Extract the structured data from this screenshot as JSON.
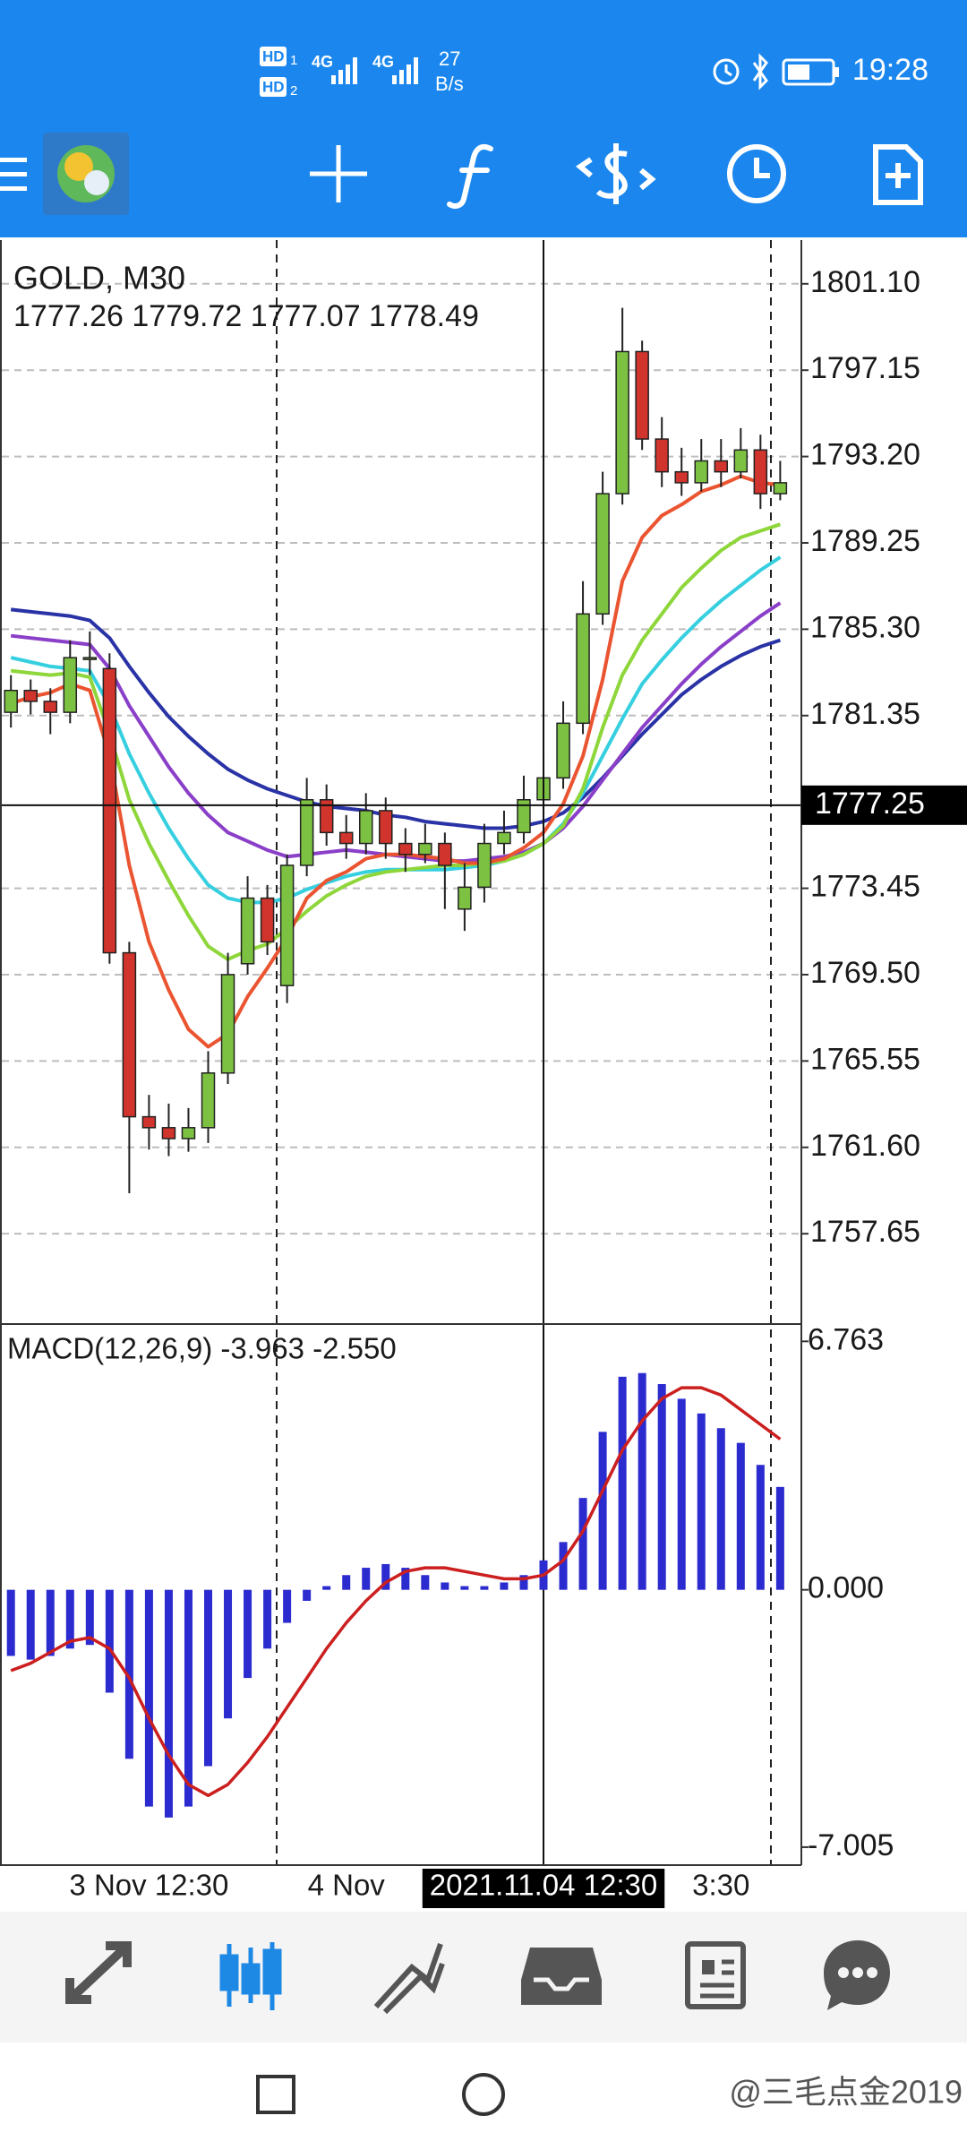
{
  "status_bar": {
    "sim": [
      "HD",
      "HD"
    ],
    "sim_index": [
      "1",
      "2"
    ],
    "network": [
      "4G",
      "4G"
    ],
    "speed": "27",
    "speed_unit": "B/s",
    "time": "19:28"
  },
  "watermark": "@三毛点金2019",
  "chart_data": [
    {
      "type": "candlestick",
      "title": "GOLD, M30",
      "subtitle": "1777.26 1779.72 1777.07 1778.49",
      "categories": [
        null,
        null,
        null,
        null,
        null,
        null,
        null,
        "3 Nov 12:30",
        null,
        null,
        null,
        null,
        null,
        null,
        null,
        null,
        null,
        "4 Nov",
        null,
        null,
        null,
        null,
        null,
        null,
        null,
        null,
        null,
        "2021.11.04 12:30",
        null,
        null,
        null,
        null,
        null,
        null,
        null,
        null,
        "3:30",
        null,
        null,
        null
      ],
      "open": [
        1781.5,
        1782.5,
        1782,
        1781.5,
        1784,
        1783.5,
        1770.5,
        1763,
        1762.5,
        1762,
        1762.5,
        1765,
        1770,
        1773,
        1769,
        1774.5,
        1777.5,
        1776,
        1775.5,
        1777,
        1775.5,
        1775,
        1775.5,
        1772.5,
        1773.5,
        1775.5,
        1776,
        1777.5,
        1778.5,
        1781,
        1786,
        1791.5,
        1798,
        1794,
        1792.5,
        1792,
        1793,
        1792.5,
        1793.5,
        1791.5
      ],
      "high": [
        1783.2,
        1783,
        1782.6,
        1784.8,
        1785.2,
        1784.2,
        1771,
        1764,
        1763.6,
        1763.4,
        1766,
        1770.5,
        1774,
        1773.6,
        1775,
        1778.5,
        1778.2,
        1776.8,
        1777.8,
        1777.6,
        1776.2,
        1776.4,
        1776,
        1774.6,
        1776.4,
        1777,
        1778.6,
        1779.6,
        1782,
        1787.5,
        1792.5,
        1800,
        1798.5,
        1795,
        1793.6,
        1794,
        1794,
        1794.5,
        1794.2,
        1793
      ],
      "low": [
        1780.8,
        1781.4,
        1780.5,
        1781,
        1783.2,
        1770,
        1759.5,
        1761.5,
        1761.2,
        1761.4,
        1761.8,
        1764.5,
        1769.5,
        1770.4,
        1768.2,
        1774,
        1775.4,
        1774.8,
        1775,
        1774.8,
        1774.2,
        1774.6,
        1772.5,
        1771.5,
        1772.8,
        1775,
        1775.5,
        1776.8,
        1778,
        1780.5,
        1785.5,
        1791,
        1793.5,
        1791.8,
        1791.4,
        1791.6,
        1791.8,
        1792.2,
        1790.8,
        1791.2
      ],
      "close": [
        1782.5,
        1782,
        1781.5,
        1784,
        1784,
        1770.5,
        1763,
        1762.5,
        1762,
        1762.5,
        1765,
        1769.5,
        1773,
        1771,
        1774.5,
        1777.5,
        1776,
        1775.5,
        1777,
        1775.5,
        1775,
        1775.5,
        1774.5,
        1773.5,
        1775.5,
        1776,
        1777.5,
        1778.5,
        1781,
        1786,
        1791.5,
        1798,
        1794,
        1792.5,
        1792,
        1793,
        1792.5,
        1793.5,
        1791.5,
        1792
      ],
      "up_color": "#7cc142",
      "down_color": "#d0342c",
      "series": [
        {
          "color": "#2a33a6",
          "values": [
            1786.2,
            1786.1,
            1786,
            1785.9,
            1785.7,
            1784.9,
            1783.6,
            1782.4,
            1781.3,
            1780.4,
            1779.6,
            1778.9,
            1778.4,
            1778,
            1777.7,
            1777.4,
            1777.2,
            1777.1,
            1777,
            1776.8,
            1776.7,
            1776.5,
            1776.4,
            1776.3,
            1776.2,
            1776.2,
            1776.3,
            1776.5,
            1776.9,
            1777.6,
            1778.5,
            1779.5,
            1780.5,
            1781.4,
            1782.3,
            1783,
            1783.6,
            1784.1,
            1784.5,
            1784.8
          ]
        },
        {
          "color": "#8a3fc8",
          "values": [
            1785,
            1784.9,
            1784.8,
            1784.7,
            1784.6,
            1783.5,
            1781.8,
            1780.4,
            1779,
            1777.8,
            1776.8,
            1776,
            1775.6,
            1775.2,
            1774.9,
            1775,
            1775.1,
            1775.2,
            1775.1,
            1775,
            1774.9,
            1774.8,
            1774.7,
            1774.7,
            1774.8,
            1774.9,
            1775.1,
            1775.5,
            1776.2,
            1777.2,
            1778.4,
            1779.6,
            1780.8,
            1781.8,
            1782.8,
            1783.7,
            1784.5,
            1785.2,
            1785.9,
            1786.5
          ]
        },
        {
          "color": "#36cfe0",
          "values": [
            1784,
            1783.8,
            1783.6,
            1783.5,
            1783.4,
            1781.8,
            1779.6,
            1777.8,
            1776.2,
            1774.8,
            1773.6,
            1773,
            1772.8,
            1772.8,
            1773,
            1773.4,
            1773.7,
            1774,
            1774.2,
            1774.3,
            1774.3,
            1774.3,
            1774.3,
            1774.4,
            1774.5,
            1774.7,
            1775,
            1775.5,
            1776.4,
            1777.8,
            1779.5,
            1781.2,
            1782.8,
            1783.9,
            1784.9,
            1785.8,
            1786.6,
            1787.3,
            1788,
            1788.6
          ]
        },
        {
          "color": "#8ed63a",
          "values": [
            1783.4,
            1783.3,
            1783.2,
            1783.3,
            1783.1,
            1780.5,
            1777.5,
            1775.5,
            1773.8,
            1772.2,
            1770.8,
            1770.2,
            1770.6,
            1770.9,
            1771.6,
            1772.4,
            1773.1,
            1773.6,
            1774,
            1774.2,
            1774.3,
            1774.4,
            1774.5,
            1774.5,
            1774.6,
            1774.7,
            1775,
            1775.5,
            1776.3,
            1778,
            1780.8,
            1783.2,
            1784.8,
            1786,
            1787.2,
            1788.1,
            1788.9,
            1789.5,
            1789.8,
            1790.1
          ]
        },
        {
          "color": "#ea5430",
          "values": [
            1781.9,
            1782.2,
            1782.4,
            1782.8,
            1782.5,
            1779.5,
            1774.5,
            1771,
            1768.8,
            1767,
            1766.2,
            1766.8,
            1768.5,
            1769.8,
            1771.2,
            1773,
            1773.8,
            1774.2,
            1774.8,
            1775,
            1775,
            1774.9,
            1774.8,
            1774.6,
            1774.6,
            1774.8,
            1775.3,
            1776,
            1777.3,
            1779.5,
            1783,
            1787.5,
            1789.5,
            1790.5,
            1791,
            1791.6,
            1791.9,
            1792.3,
            1792,
            1791.9
          ]
        }
      ],
      "ylim": [
        1753.6,
        1803.1
      ],
      "yticks": [
        {
          "value": 1801.1,
          "label": "1801.10"
        },
        1797.15,
        {
          "value": 1793.2,
          "label": "1793.20"
        },
        1789.25,
        {
          "value": 1785.3,
          "label": "1785.30"
        },
        1781.35,
        1773.45,
        {
          "value": 1769.5,
          "label": "1769.50"
        },
        1765.55,
        {
          "value": 1761.6,
          "label": "1761.60"
        },
        1757.65
      ],
      "grid": true,
      "current_price": 1777.25
    },
    {
      "type": "macd",
      "title": "MACD(12,26,9) -3.963 -2.550",
      "series": [
        {
          "type": "bar",
          "color": "#2b2bd0",
          "values": [
            -1.8,
            -1.9,
            -1.8,
            -1.6,
            -1.5,
            -2.8,
            -4.6,
            -5.9,
            -6.2,
            -5.9,
            -4.8,
            -3.5,
            -2.4,
            -1.6,
            -0.9,
            -0.3,
            0.1,
            0.4,
            0.6,
            0.7,
            0.6,
            0.4,
            0.2,
            0.1,
            0.1,
            0.2,
            0.4,
            0.8,
            1.3,
            2.5,
            4.3,
            5.8,
            5.9,
            5.6,
            5.2,
            4.8,
            4.4,
            4.0,
            3.4,
            2.8
          ]
        },
        {
          "type": "line",
          "color": "#cc1f1f",
          "values": [
            -2.2,
            -2,
            -1.7,
            -1.4,
            -1.3,
            -1.6,
            -2.4,
            -3.5,
            -4.5,
            -5.3,
            -5.6,
            -5.3,
            -4.7,
            -4,
            -3.2,
            -2.4,
            -1.6,
            -0.9,
            -0.3,
            0.2,
            0.5,
            0.6,
            0.6,
            0.5,
            0.4,
            0.3,
            0.3,
            0.4,
            0.8,
            1.6,
            2.7,
            3.8,
            4.6,
            5.2,
            5.5,
            5.5,
            5.3,
            4.9,
            4.5,
            4.1
          ]
        }
      ],
      "ylim": [
        -7.47,
        7.21
      ],
      "yticks": [
        6.763,
        {
          "value": 0,
          "label": "0.000"
        },
        -7.005
      ]
    }
  ]
}
